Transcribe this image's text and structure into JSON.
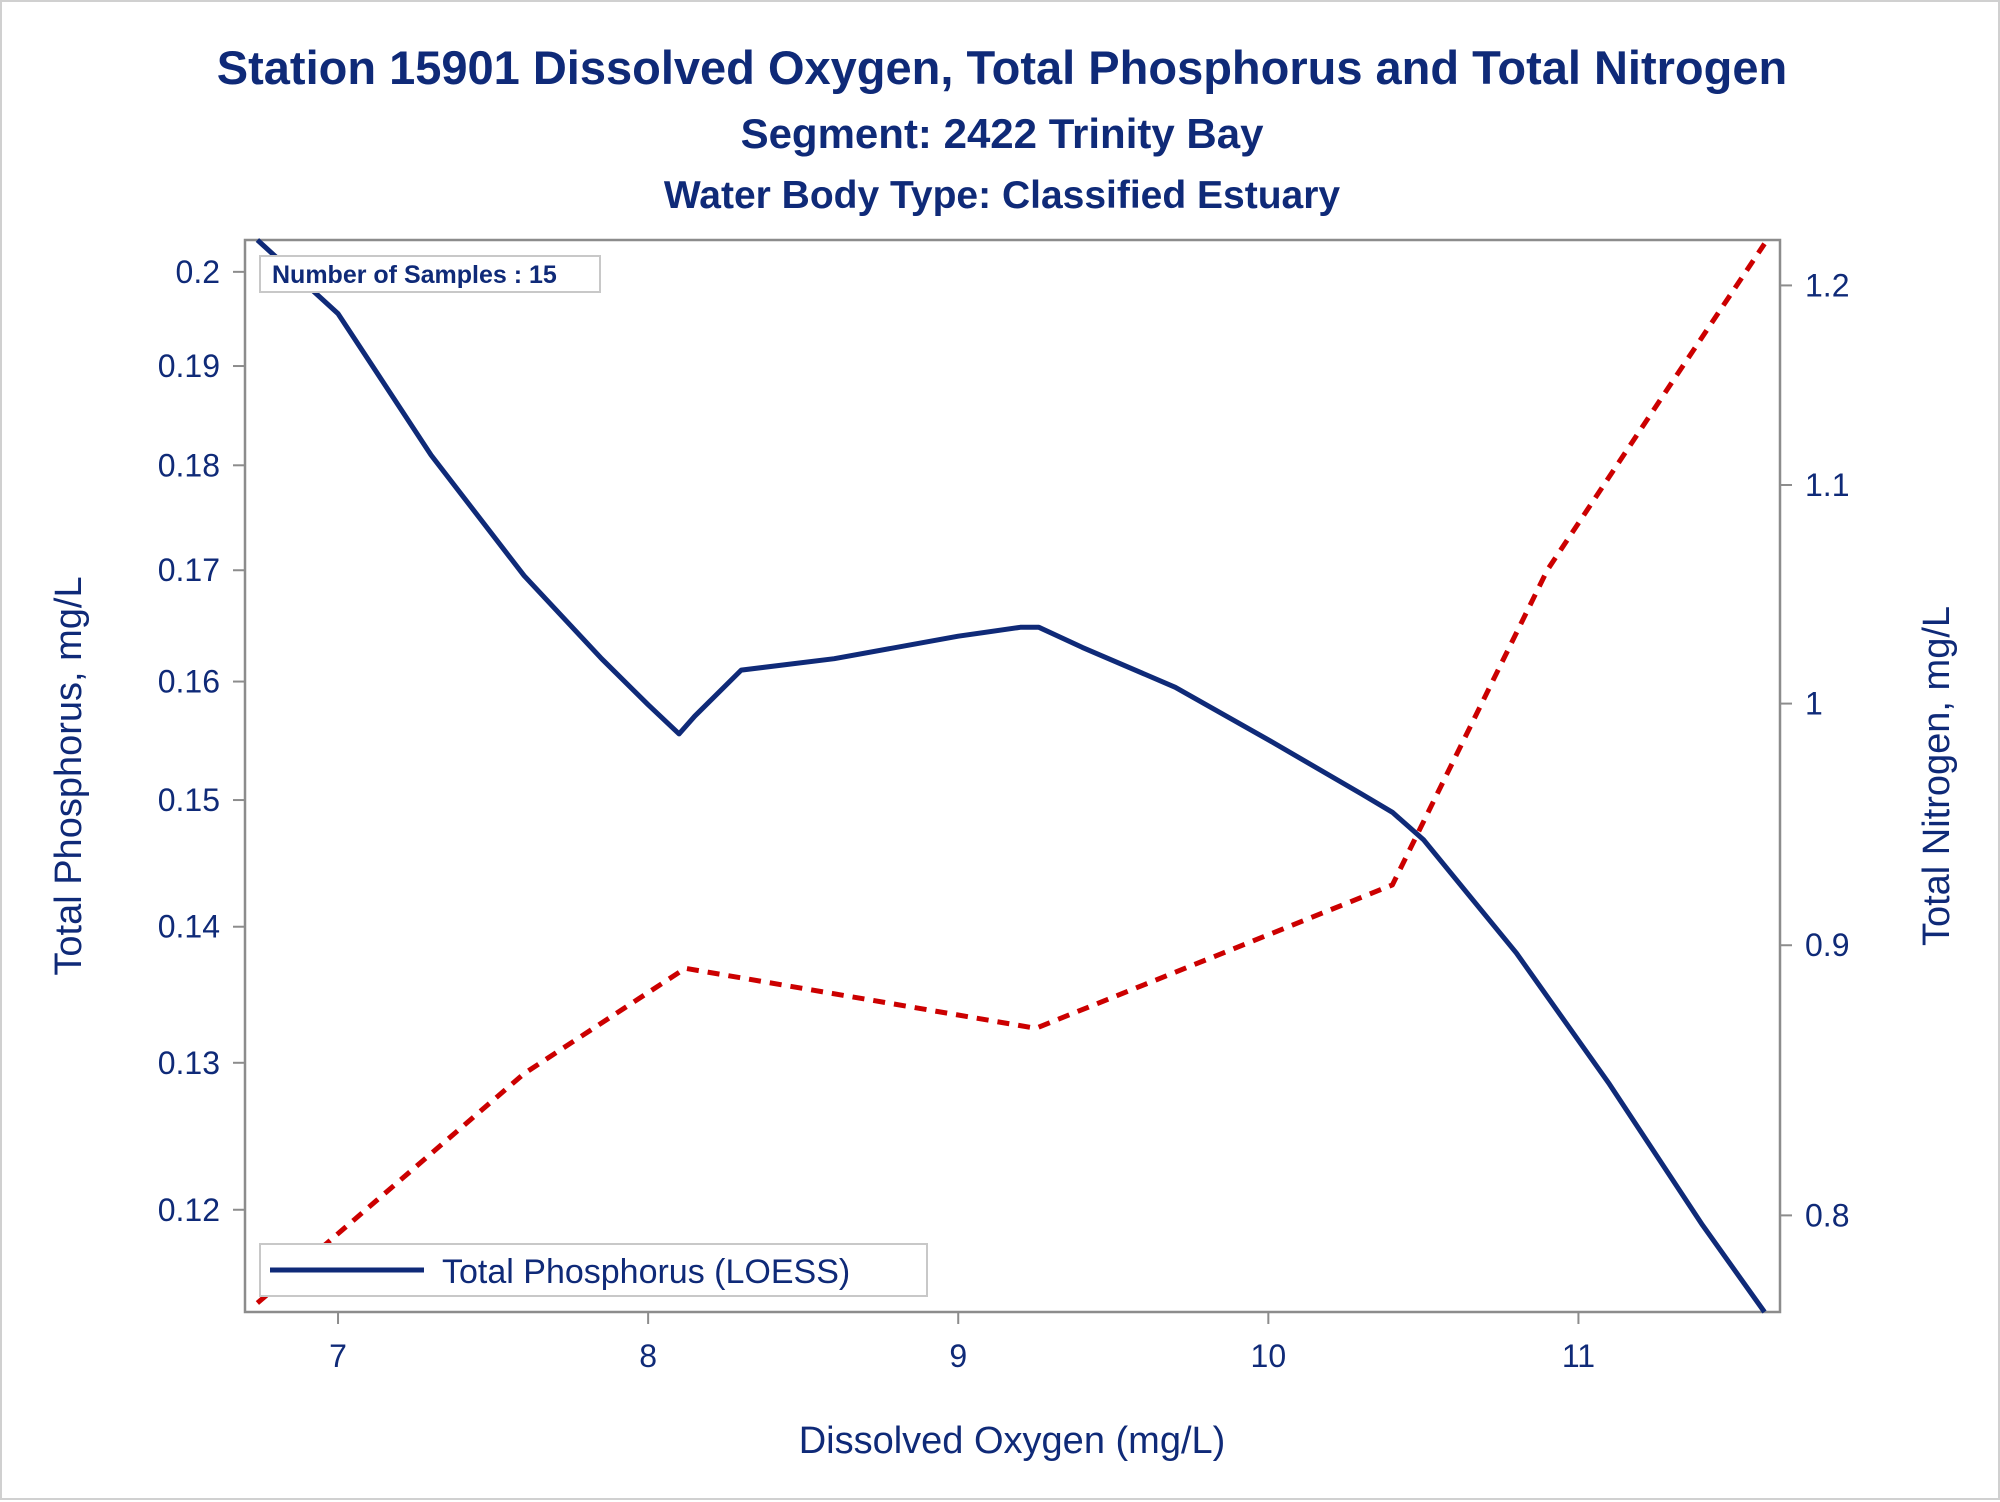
{
  "chart_data": {
    "type": "line",
    "title": "Station 15901  Dissolved Oxygen, Total Phosphorus and Total Nitrogen",
    "subtitle": "Segment: 2422  Trinity Bay",
    "subtitle2": "Water Body Type: Classified Estuary",
    "xlabel": "Dissolved Oxygen (mg/L)",
    "ylabel": "Total Phosphorus, mg/L",
    "y2label": "Total Nitrogen, mg/L",
    "inset": "Number of Samples : 15",
    "xlim": [
      6.7,
      11.65
    ],
    "ylim": [
      0.1135,
      0.2035
    ],
    "y2lim": [
      0.767,
      1.224
    ],
    "x_ticks": [
      "7",
      "8",
      "9",
      "10",
      "11"
    ],
    "x_tick_values": [
      7,
      8,
      9,
      10,
      11
    ],
    "y_ticks": [
      "0.12",
      "0.13",
      "0.14",
      "0.15",
      "0.16",
      "0.17",
      "0.18",
      "0.19",
      "0.2"
    ],
    "y_tick_values": [
      0.12,
      0.13,
      0.14,
      0.15,
      0.16,
      0.17,
      0.18,
      0.19,
      0.2
    ],
    "y2_ticks": [
      "0.8",
      "0.9",
      "1",
      "1.1",
      "1.2"
    ],
    "y2_tick_values": [
      0.8,
      0.9,
      1.0,
      1.1,
      1.2
    ],
    "series": [
      {
        "name": "Total Phosphorus (LOESS)",
        "axis": "left",
        "style": "solid",
        "color": "#0f2a78",
        "x": [
          6.74,
          7.0,
          7.3,
          7.6,
          7.85,
          8.0,
          8.1,
          8.15,
          8.3,
          8.6,
          9.0,
          9.2,
          9.26,
          9.4,
          9.7,
          10.0,
          10.3,
          10.4,
          10.5,
          10.8,
          11.1,
          11.4,
          11.6
        ],
        "y": [
          0.2035,
          0.1955,
          0.181,
          0.1695,
          0.162,
          0.158,
          0.1555,
          0.157,
          0.161,
          0.162,
          0.164,
          0.1648,
          0.1648,
          0.163,
          0.1595,
          0.155,
          0.1505,
          0.149,
          0.1468,
          0.138,
          0.1285,
          0.119,
          0.1135
        ]
      },
      {
        "axis": "right",
        "style": "dashed",
        "color": "#cc0000",
        "x": [
          6.74,
          7.6,
          8.12,
          9.25,
          10.4,
          10.9,
          11.3,
          11.6
        ],
        "y": [
          0.77,
          0.851,
          0.891,
          0.868,
          0.924,
          1.06,
          1.15,
          1.222
        ]
      }
    ],
    "legend_entries": [
      "Total Phosphorus (LOESS)"
    ],
    "legend_position": "bottom-left",
    "grid": false
  },
  "colors": {
    "text": "#0f2a78",
    "axis": "#8c8c8c",
    "phosphorus": "#0f2a78",
    "nitrogen": "#cc0000"
  }
}
